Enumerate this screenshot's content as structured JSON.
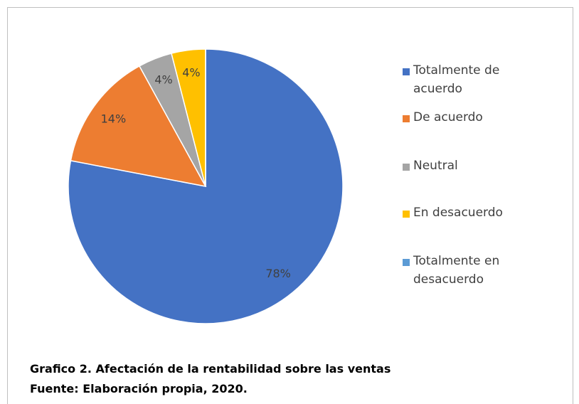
{
  "chart_data": {
    "type": "pie",
    "title": "Grafico 2. Afectación de la rentabilidad sobre las ventas",
    "subtitle": "Fuente: Elaboración propia, 2020.",
    "categories": [
      "Totalmente de acuerdo",
      "De acuerdo",
      "Neutral",
      "En desacuerdo",
      "Totalmente en desacuerdo"
    ],
    "values": [
      78,
      14,
      4,
      4,
      0
    ],
    "value_labels": [
      "78%",
      "14%",
      "4%",
      "4%",
      null
    ],
    "colors": [
      "#4472c4",
      "#ed7d31",
      "#a5a5a5",
      "#ffc000",
      "#5b9bd5"
    ],
    "legend": "right"
  }
}
